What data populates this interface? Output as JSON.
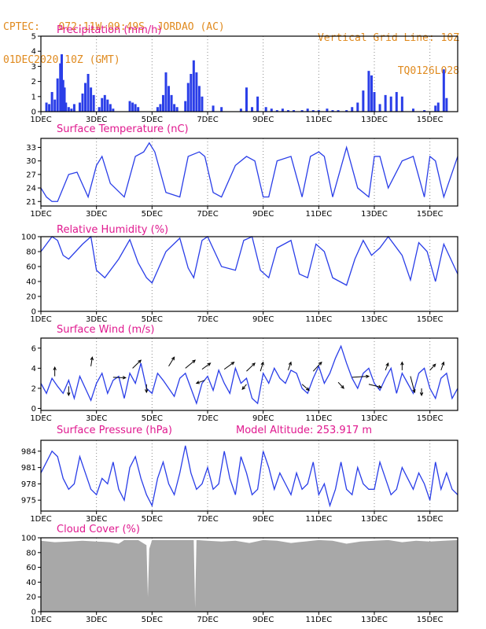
{
  "header": {
    "line1": "CPTEC:   072:11W-09:49S  JORDAO (AC)",
    "line2": "01DEC2020 10Z (GMT)",
    "right1": "Vertical Grid Line: 10Z",
    "right2": "TQ0126L028"
  },
  "colors": {
    "header": "#e08a1e",
    "title": "#e0198f",
    "series": "#2a3ee8",
    "cloud": "#a8a8a8"
  },
  "x_ticks": [
    "1DEC",
    "3DEC",
    "5DEC",
    "7DEC",
    "9DEC",
    "11DEC",
    "13DEC",
    "15DEC"
  ],
  "x_tick_day": [
    1,
    3,
    5,
    7,
    9,
    11,
    13,
    15
  ],
  "x_range_days": [
    1,
    16
  ],
  "chart_data": [
    {
      "type": "bar",
      "title": "Precipitation (mm/h)",
      "ylim": [
        0,
        5
      ],
      "yticks": [
        0,
        1,
        2,
        3,
        4,
        5
      ],
      "x_unit": "day of December 2020",
      "x": [
        1.2,
        1.3,
        1.4,
        1.5,
        1.6,
        1.7,
        1.75,
        1.8,
        1.85,
        1.9,
        2.0,
        2.1,
        2.2,
        2.4,
        2.5,
        2.6,
        2.7,
        2.8,
        2.9,
        3.1,
        3.2,
        3.3,
        3.4,
        3.5,
        3.6,
        4.2,
        4.3,
        4.4,
        4.5,
        5.2,
        5.3,
        5.4,
        5.5,
        5.6,
        5.7,
        5.8,
        5.9,
        6.2,
        6.3,
        6.4,
        6.5,
        6.6,
        6.7,
        6.8,
        7.2,
        7.5,
        8.2,
        8.4,
        8.6,
        8.8,
        9.1,
        9.3,
        9.5,
        9.7,
        9.9,
        10.1,
        10.4,
        10.6,
        10.8,
        11.0,
        11.3,
        11.5,
        11.7,
        12.0,
        12.2,
        12.4,
        12.6,
        12.8,
        12.9,
        13.0,
        13.2,
        13.4,
        13.6,
        13.8,
        14.0,
        14.4,
        14.8,
        15.2,
        15.3,
        15.5,
        15.6
      ],
      "values": [
        0.6,
        0.5,
        1.3,
        0.8,
        2.2,
        3.2,
        3.8,
        2.1,
        1.6,
        0.6,
        0.3,
        0.2,
        0.5,
        0.6,
        1.2,
        1.9,
        2.5,
        1.6,
        1.1,
        0.3,
        0.9,
        1.1,
        0.8,
        0.5,
        0.2,
        0.7,
        0.6,
        0.5,
        0.3,
        0.3,
        0.5,
        1.1,
        2.6,
        1.7,
        1.1,
        0.5,
        0.3,
        0.7,
        1.9,
        2.5,
        3.4,
        2.6,
        1.7,
        1.0,
        0.4,
        0.3,
        0.2,
        1.6,
        0.3,
        1.0,
        0.3,
        0.2,
        0.1,
        0.2,
        0.1,
        0.1,
        0.1,
        0.2,
        0.1,
        0.1,
        0.2,
        0.1,
        0.1,
        0.1,
        0.3,
        0.6,
        1.4,
        2.7,
        2.4,
        1.3,
        0.5,
        1.1,
        1.0,
        1.3,
        1.0,
        0.2,
        0.1,
        0.4,
        0.6,
        2.8,
        0.9
      ]
    },
    {
      "type": "line",
      "title": "Surface Temperature (nC)",
      "ylim": [
        20,
        35
      ],
      "yticks": [
        21,
        24,
        27,
        30,
        33
      ],
      "x_unit": "day of December 2020",
      "series": [
        {
          "x": [
            1.0,
            1.2,
            1.4,
            1.6,
            2.0,
            2.3,
            2.7,
            3.0,
            3.2,
            3.5,
            4.0,
            4.4,
            4.7,
            4.9,
            5.1,
            5.5,
            6.0,
            6.3,
            6.7,
            6.9,
            7.2,
            7.5,
            8.0,
            8.4,
            8.7,
            9.0,
            9.2,
            9.5,
            10.0,
            10.4,
            10.7,
            11.0,
            11.2,
            11.5,
            12.0,
            12.4,
            12.8,
            13.0,
            13.2,
            13.5,
            14.0,
            14.4,
            14.8,
            15.0,
            15.2,
            15.5,
            16.0
          ],
          "y": [
            24,
            22,
            21,
            21,
            27,
            27.5,
            22,
            29,
            31,
            25,
            22,
            31,
            32,
            34,
            32,
            23,
            22,
            31,
            32,
            31,
            23,
            22,
            29,
            31,
            30,
            22,
            22,
            30,
            31,
            22,
            31,
            32,
            31,
            22,
            33,
            24,
            22,
            31,
            31,
            24,
            30,
            31,
            22,
            31,
            30,
            22,
            31
          ]
        }
      ]
    },
    {
      "type": "line",
      "title": "Relative Humidity (%)",
      "ylim": [
        0,
        100
      ],
      "yticks": [
        0,
        20,
        40,
        60,
        80,
        100
      ],
      "x_unit": "day of December 2020",
      "series": [
        {
          "x": [
            1.0,
            1.2,
            1.4,
            1.6,
            1.8,
            2.0,
            2.5,
            2.8,
            3.0,
            3.3,
            3.8,
            4.2,
            4.5,
            4.8,
            5.0,
            5.5,
            6.0,
            6.3,
            6.5,
            6.8,
            7.0,
            7.5,
            8.0,
            8.3,
            8.6,
            8.9,
            9.2,
            9.5,
            10.0,
            10.3,
            10.6,
            10.9,
            11.2,
            11.5,
            12.0,
            12.3,
            12.6,
            12.9,
            13.2,
            13.5,
            14.0,
            14.3,
            14.6,
            14.9,
            15.2,
            15.5,
            16.0
          ],
          "y": [
            80,
            90,
            100,
            95,
            75,
            70,
            90,
            100,
            55,
            45,
            70,
            96,
            65,
            45,
            38,
            80,
            98,
            58,
            45,
            95,
            100,
            60,
            55,
            95,
            100,
            55,
            45,
            85,
            95,
            50,
            45,
            90,
            80,
            45,
            35,
            70,
            95,
            75,
            85,
            100,
            75,
            42,
            92,
            80,
            40,
            90,
            50
          ]
        }
      ]
    },
    {
      "type": "line",
      "title": "Surface Wind (m/s)",
      "ylim": [
        -0.2,
        7
      ],
      "yticks": [
        0,
        2,
        4,
        6
      ],
      "x_unit": "day of December 2020",
      "series": [
        {
          "x": [
            1.0,
            1.2,
            1.4,
            1.6,
            1.8,
            2.0,
            2.2,
            2.4,
            2.6,
            2.8,
            3.0,
            3.2,
            3.4,
            3.6,
            3.8,
            4.0,
            4.2,
            4.4,
            4.6,
            4.8,
            5.0,
            5.2,
            5.4,
            5.6,
            5.8,
            6.0,
            6.2,
            6.4,
            6.6,
            6.8,
            7.0,
            7.2,
            7.4,
            7.6,
            7.8,
            8.0,
            8.2,
            8.4,
            8.6,
            8.8,
            9.0,
            9.2,
            9.4,
            9.6,
            9.8,
            10.0,
            10.2,
            10.4,
            10.6,
            10.8,
            11.0,
            11.2,
            11.4,
            11.6,
            11.8,
            12.0,
            12.2,
            12.4,
            12.6,
            12.8,
            13.0,
            13.2,
            13.4,
            13.6,
            13.8,
            14.0,
            14.2,
            14.4,
            14.6,
            14.8,
            15.0,
            15.2,
            15.4,
            15.6,
            15.8,
            16.0
          ],
          "y": [
            2.5,
            1.5,
            3.0,
            2.2,
            1.5,
            2.8,
            1.0,
            3.2,
            2.0,
            0.8,
            2.5,
            3.5,
            1.5,
            2.8,
            3.2,
            1.0,
            3.5,
            2.5,
            4.5,
            2.0,
            1.5,
            3.5,
            2.8,
            2.0,
            1.2,
            3.0,
            3.5,
            2.0,
            0.5,
            2.5,
            3.2,
            1.8,
            3.8,
            2.5,
            1.5,
            4.0,
            2.5,
            3.0,
            1.0,
            0.5,
            3.5,
            2.5,
            4.0,
            3.0,
            2.5,
            3.8,
            3.5,
            2.0,
            1.5,
            3.0,
            4.2,
            2.5,
            3.5,
            5.0,
            6.2,
            4.5,
            3.0,
            2.0,
            3.5,
            4.0,
            2.5,
            1.8,
            3.0,
            4.0,
            1.5,
            3.5,
            2.5,
            1.5,
            3.5,
            4.0,
            2.0,
            1.0,
            3.0,
            3.5,
            1.0,
            2.0
          ]
        }
      ],
      "wind_arrows": [
        {
          "x": 1.5,
          "y": 3.2,
          "dx": 0.0,
          "dy": 0.9
        },
        {
          "x": 2.0,
          "y": 2.2,
          "dx": 0.0,
          "dy": -0.9
        },
        {
          "x": 2.8,
          "y": 4.2,
          "dx": 0.05,
          "dy": 0.9
        },
        {
          "x": 3.6,
          "y": 3.1,
          "dx": 0.45,
          "dy": -0.05
        },
        {
          "x": 4.3,
          "y": 4.0,
          "dx": 0.3,
          "dy": 0.8
        },
        {
          "x": 4.8,
          "y": 2.4,
          "dx": 0.0,
          "dy": -0.8
        },
        {
          "x": 5.6,
          "y": 4.2,
          "dx": 0.2,
          "dy": 0.9
        },
        {
          "x": 6.2,
          "y": 4.0,
          "dx": 0.35,
          "dy": 0.8
        },
        {
          "x": 6.8,
          "y": 3.9,
          "dx": 0.3,
          "dy": 0.6
        },
        {
          "x": 6.9,
          "y": 2.8,
          "dx": -0.3,
          "dy": -0.3
        },
        {
          "x": 7.6,
          "y": 3.9,
          "dx": 0.35,
          "dy": 0.7
        },
        {
          "x": 8.4,
          "y": 3.7,
          "dx": 0.3,
          "dy": 0.8
        },
        {
          "x": 8.9,
          "y": 3.7,
          "dx": 0.1,
          "dy": 0.9
        },
        {
          "x": 8.4,
          "y": 2.4,
          "dx": -0.15,
          "dy": -0.5
        },
        {
          "x": 9.9,
          "y": 3.8,
          "dx": 0.1,
          "dy": 0.8
        },
        {
          "x": 10.4,
          "y": 2.4,
          "dx": 0.25,
          "dy": -0.6
        },
        {
          "x": 10.8,
          "y": 3.7,
          "dx": 0.3,
          "dy": 0.9
        },
        {
          "x": 11.7,
          "y": 2.6,
          "dx": 0.2,
          "dy": -0.6
        },
        {
          "x": 12.2,
          "y": 3.1,
          "dx": 0.6,
          "dy": 0.1
        },
        {
          "x": 12.8,
          "y": 2.4,
          "dx": 0.45,
          "dy": -0.3
        },
        {
          "x": 13.4,
          "y": 3.8,
          "dx": 0.1,
          "dy": 0.7
        },
        {
          "x": 14.0,
          "y": 3.8,
          "dx": 0.0,
          "dy": 0.8
        },
        {
          "x": 14.3,
          "y": 3.2,
          "dx": 0.15,
          "dy": -1.6
        },
        {
          "x": 14.7,
          "y": 2.0,
          "dx": 0.0,
          "dy": -0.7
        },
        {
          "x": 15.0,
          "y": 3.8,
          "dx": 0.2,
          "dy": 0.6
        },
        {
          "x": 15.4,
          "y": 3.8,
          "dx": 0.1,
          "dy": 0.8
        }
      ]
    },
    {
      "type": "line",
      "title": "Surface Pressure (hPa)",
      "subtitle": "Model Altitude: 253.917 m",
      "ylim": [
        973,
        986
      ],
      "yticks": [
        975,
        978,
        981,
        984
      ],
      "x_unit": "day of December 2020",
      "series": [
        {
          "x": [
            1.0,
            1.2,
            1.4,
            1.6,
            1.8,
            2.0,
            2.2,
            2.4,
            2.6,
            2.8,
            3.0,
            3.2,
            3.4,
            3.6,
            3.8,
            4.0,
            4.2,
            4.4,
            4.6,
            4.8,
            5.0,
            5.2,
            5.4,
            5.6,
            5.8,
            6.0,
            6.2,
            6.4,
            6.6,
            6.8,
            7.0,
            7.2,
            7.4,
            7.6,
            7.8,
            8.0,
            8.2,
            8.4,
            8.6,
            8.8,
            9.0,
            9.2,
            9.4,
            9.6,
            9.8,
            10.0,
            10.2,
            10.4,
            10.6,
            10.8,
            11.0,
            11.2,
            11.4,
            11.6,
            11.8,
            12.0,
            12.2,
            12.4,
            12.6,
            12.8,
            13.0,
            13.2,
            13.4,
            13.6,
            13.8,
            14.0,
            14.2,
            14.4,
            14.6,
            14.8,
            15.0,
            15.2,
            15.4,
            15.6,
            15.8,
            16.0
          ],
          "y": [
            980,
            982,
            984,
            983,
            979,
            977,
            978,
            983,
            980,
            977,
            976,
            979,
            978,
            982,
            977,
            975,
            981,
            983,
            979,
            976,
            974,
            979,
            982,
            978,
            976,
            980,
            985,
            980,
            977,
            978,
            981,
            977,
            978,
            984,
            979,
            976,
            983,
            980,
            976,
            977,
            984,
            981,
            977,
            980,
            978,
            976,
            980,
            977,
            978,
            982,
            976,
            978,
            974,
            977,
            982,
            977,
            976,
            981,
            978,
            977,
            977,
            982,
            979,
            976,
            977,
            981,
            979,
            977,
            980,
            978,
            975,
            982,
            977,
            980,
            977,
            976
          ]
        }
      ]
    },
    {
      "type": "area",
      "title": "Cloud Cover (%)",
      "ylim": [
        0,
        100
      ],
      "yticks": [
        0,
        20,
        40,
        60,
        80,
        100
      ],
      "x_unit": "day of December 2020",
      "series": [
        {
          "x": [
            1.0,
            1.5,
            2.0,
            2.5,
            3.0,
            3.5,
            3.8,
            4.0,
            4.5,
            4.8,
            4.85,
            4.9,
            5.0,
            5.5,
            6.0,
            6.5,
            6.55,
            6.6,
            7.0,
            7.5,
            8.0,
            8.5,
            9.0,
            9.5,
            10.0,
            10.5,
            11.0,
            11.5,
            12.0,
            12.5,
            13.0,
            13.5,
            14.0,
            14.5,
            15.0,
            15.5,
            16.0
          ],
          "y": [
            96,
            94,
            95,
            96,
            95,
            94,
            92,
            97,
            97,
            90,
            20,
            85,
            97,
            97,
            97,
            97,
            5,
            97,
            96,
            95,
            96,
            93,
            97,
            96,
            93,
            95,
            97,
            96,
            92,
            95,
            96,
            97,
            94,
            96,
            95,
            96,
            97
          ]
        }
      ]
    }
  ]
}
